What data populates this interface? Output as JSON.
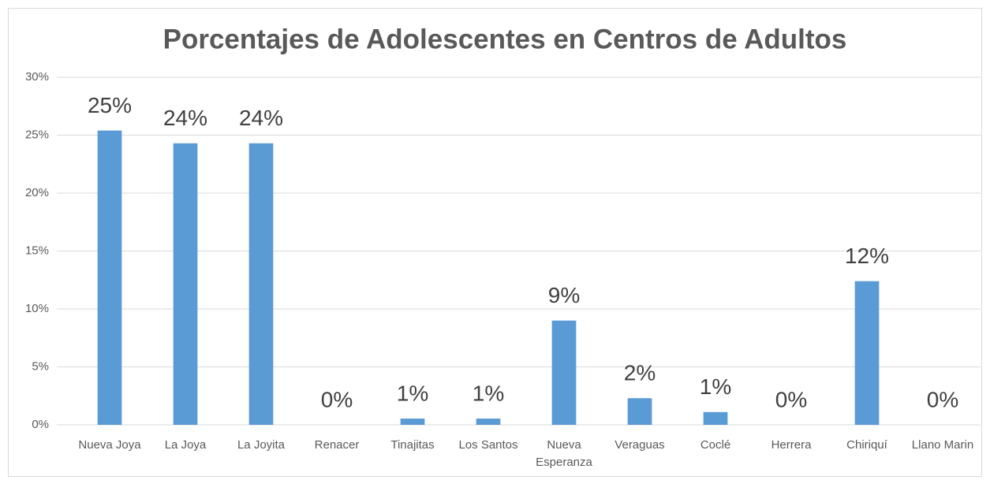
{
  "chart_data": {
    "type": "bar",
    "title": "Porcentajes de Adolescentes en Centros de Adultos",
    "categories": [
      "Nueva Joya",
      "La Joya",
      "La Joyita",
      "Renacer",
      "Tinajitas",
      "Los Santos",
      "Nueva Esperanza",
      "Veraguas",
      "Coclé",
      "Herrera",
      "Chiriquí",
      "Llano Marin"
    ],
    "values": [
      25.4,
      24.3,
      24.3,
      0,
      0.54,
      0.54,
      9.0,
      2.3,
      1.1,
      0,
      12.4,
      0
    ],
    "value_labels": [
      "25%",
      "24%",
      "24%",
      "0%",
      "1%",
      "1%",
      "9%",
      "2%",
      "1%",
      "0%",
      "12%",
      "0%"
    ],
    "color": "#5b9bd5",
    "ylim": [
      0,
      30
    ],
    "yticks": [
      {
        "value": 0,
        "label": "0%"
      },
      {
        "value": 5,
        "label": "5%"
      },
      {
        "value": 10,
        "label": "10%"
      },
      {
        "value": 15,
        "label": "15%"
      },
      {
        "value": 20,
        "label": "20%"
      },
      {
        "value": 25,
        "label": "25%"
      },
      {
        "value": 30,
        "label": "30%"
      }
    ],
    "grid": true
  }
}
